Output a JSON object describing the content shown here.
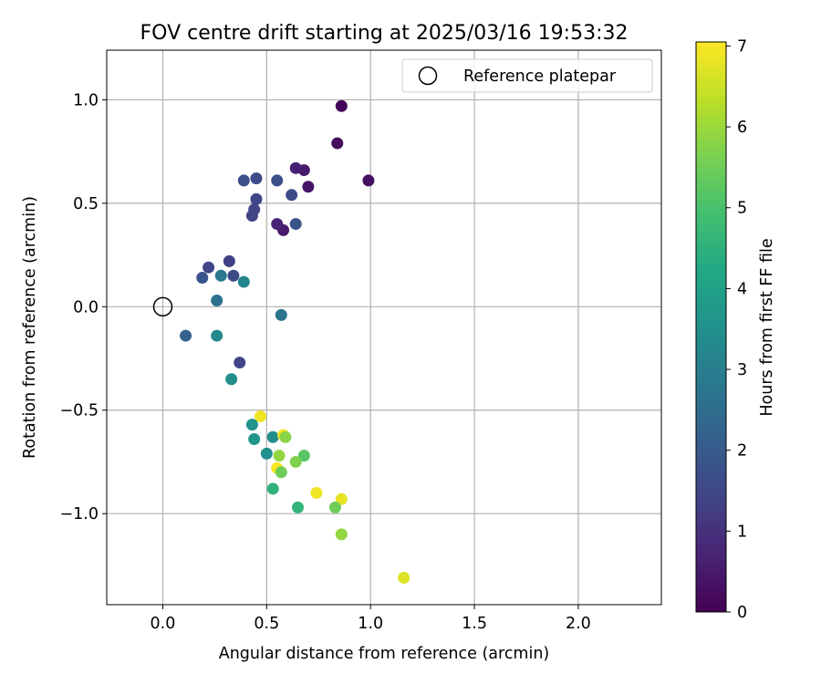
{
  "chart_data": {
    "type": "scatter",
    "title": "FOV centre drift starting at 2025/03/16 19:53:32",
    "xlabel": "Angular distance from reference (arcmin)",
    "ylabel": "Rotation from reference (arcmin)",
    "colorbar_label": "Hours from first FF file",
    "colormap": "viridis",
    "xlim": [
      -0.27,
      2.4
    ],
    "ylim": [
      -1.44,
      1.24
    ],
    "clim": [
      0,
      7.05
    ],
    "grid": true,
    "xticks": [
      0.0,
      0.5,
      1.0,
      1.5,
      2.0
    ],
    "xtick_labels": [
      "0.0",
      "0.5",
      "1.0",
      "1.5",
      "2.0"
    ],
    "yticks": [
      1.0,
      0.5,
      0.0,
      -0.5,
      -1.0
    ],
    "ytick_labels": [
      "1.0",
      "0.5",
      "0.0",
      "−0.5",
      "−1.0"
    ],
    "cticks": [
      0,
      1,
      2,
      3,
      4,
      5,
      6,
      7
    ],
    "ctick_labels": [
      "0",
      "1",
      "2",
      "3",
      "4",
      "5",
      "6",
      "7"
    ],
    "legend": {
      "position": "top-right",
      "label": "Reference platepar"
    },
    "reference_point": {
      "x": 0.0,
      "y": 0.0
    },
    "points": [
      {
        "x": 0.86,
        "y": 0.97,
        "c": 0.1
      },
      {
        "x": 0.84,
        "y": 0.79,
        "c": 0.2
      },
      {
        "x": 0.99,
        "y": 0.61,
        "c": 0.3
      },
      {
        "x": 0.7,
        "y": 0.58,
        "c": 0.4
      },
      {
        "x": 0.68,
        "y": 0.66,
        "c": 0.5
      },
      {
        "x": 0.64,
        "y": 0.67,
        "c": 0.6
      },
      {
        "x": 0.58,
        "y": 0.37,
        "c": 0.5
      },
      {
        "x": 0.55,
        "y": 0.4,
        "c": 0.7
      },
      {
        "x": 0.45,
        "y": 0.62,
        "c": 1.6
      },
      {
        "x": 0.39,
        "y": 0.61,
        "c": 1.7
      },
      {
        "x": 0.55,
        "y": 0.61,
        "c": 1.7
      },
      {
        "x": 0.62,
        "y": 0.54,
        "c": 1.6
      },
      {
        "x": 0.45,
        "y": 0.52,
        "c": 1.5
      },
      {
        "x": 0.44,
        "y": 0.47,
        "c": 1.4
      },
      {
        "x": 0.43,
        "y": 0.44,
        "c": 1.4
      },
      {
        "x": 0.64,
        "y": 0.4,
        "c": 1.8
      },
      {
        "x": 0.32,
        "y": 0.22,
        "c": 1.3
      },
      {
        "x": 0.22,
        "y": 0.19,
        "c": 1.5
      },
      {
        "x": 0.19,
        "y": 0.14,
        "c": 1.8
      },
      {
        "x": 0.34,
        "y": 0.15,
        "c": 1.6
      },
      {
        "x": 0.28,
        "y": 0.15,
        "c": 2.8
      },
      {
        "x": 0.39,
        "y": 0.12,
        "c": 3.2
      },
      {
        "x": 0.26,
        "y": 0.03,
        "c": 2.6
      },
      {
        "x": 0.57,
        "y": -0.04,
        "c": 2.7
      },
      {
        "x": 0.11,
        "y": -0.14,
        "c": 2.2
      },
      {
        "x": 0.26,
        "y": -0.14,
        "c": 3.3
      },
      {
        "x": 0.37,
        "y": -0.27,
        "c": 1.4
      },
      {
        "x": 0.33,
        "y": -0.35,
        "c": 3.4
      },
      {
        "x": 0.47,
        "y": -0.53,
        "c": 6.9
      },
      {
        "x": 0.43,
        "y": -0.57,
        "c": 3.6
      },
      {
        "x": 0.53,
        "y": -0.63,
        "c": 3.4
      },
      {
        "x": 0.58,
        "y": -0.62,
        "c": 7.0
      },
      {
        "x": 0.59,
        "y": -0.63,
        "c": 5.8
      },
      {
        "x": 0.44,
        "y": -0.64,
        "c": 3.7
      },
      {
        "x": 0.5,
        "y": -0.71,
        "c": 3.5
      },
      {
        "x": 0.56,
        "y": -0.72,
        "c": 5.9
      },
      {
        "x": 0.68,
        "y": -0.72,
        "c": 5.2
      },
      {
        "x": 0.64,
        "y": -0.75,
        "c": 5.7
      },
      {
        "x": 0.55,
        "y": -0.78,
        "c": 7.0
      },
      {
        "x": 0.57,
        "y": -0.8,
        "c": 5.5
      },
      {
        "x": 0.53,
        "y": -0.88,
        "c": 4.5
      },
      {
        "x": 0.74,
        "y": -0.9,
        "c": 6.9
      },
      {
        "x": 0.86,
        "y": -0.93,
        "c": 6.8
      },
      {
        "x": 0.65,
        "y": -0.97,
        "c": 4.6
      },
      {
        "x": 0.83,
        "y": -0.97,
        "c": 5.5
      },
      {
        "x": 0.86,
        "y": -1.1,
        "c": 5.9
      },
      {
        "x": 1.16,
        "y": -1.31,
        "c": 6.7
      }
    ]
  }
}
